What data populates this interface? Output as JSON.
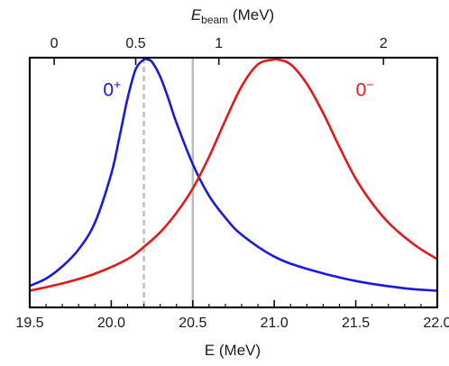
{
  "chart_data": {
    "type": "line",
    "title": "",
    "xlabel": "E (MeV)",
    "x2label_main": "E",
    "x2label_sub": "beam",
    "x2label_unit": " (MeV)",
    "ylabel": "",
    "xlim": [
      19.5,
      22.0
    ],
    "xticks": [
      "19.5",
      "20.0",
      "20.5",
      "21.0",
      "21.5",
      "22.0"
    ],
    "x2ticks": [
      "0",
      "0.5",
      "1",
      "2"
    ],
    "x2tick_positions": [
      19.65,
      20.15,
      20.66,
      21.67
    ],
    "yticks_shown": false,
    "grid": false,
    "series": [
      {
        "name": "0⁺",
        "color": "#1a1adf",
        "x": [
          19.5,
          19.6,
          19.7,
          19.8,
          19.9,
          20.0,
          20.05,
          20.1,
          20.15,
          20.2,
          20.22,
          20.25,
          20.3,
          20.35,
          20.4,
          20.5,
          20.6,
          20.7,
          20.8,
          21.0,
          21.2,
          21.5,
          21.8,
          22.0
        ],
        "y": [
          0.07,
          0.1,
          0.15,
          0.22,
          0.33,
          0.53,
          0.68,
          0.84,
          0.96,
          1.0,
          1.0,
          0.99,
          0.93,
          0.84,
          0.74,
          0.57,
          0.44,
          0.35,
          0.28,
          0.19,
          0.14,
          0.09,
          0.06,
          0.05
        ]
      },
      {
        "name": "0⁻",
        "color": "#e01a1a",
        "x": [
          19.5,
          19.7,
          19.9,
          20.1,
          20.2,
          20.3,
          20.4,
          20.5,
          20.6,
          20.7,
          20.8,
          20.9,
          21.0,
          21.02,
          21.1,
          21.2,
          21.3,
          21.4,
          21.5,
          21.6,
          21.7,
          21.8,
          21.9,
          22.0
        ],
        "y": [
          0.05,
          0.08,
          0.12,
          0.18,
          0.23,
          0.29,
          0.37,
          0.47,
          0.6,
          0.75,
          0.89,
          0.98,
          1.0,
          1.0,
          0.98,
          0.9,
          0.78,
          0.64,
          0.51,
          0.41,
          0.33,
          0.27,
          0.22,
          0.18
        ]
      }
    ],
    "vlines": [
      {
        "x": 20.2,
        "style": "dashed",
        "color": "#bbbbbb"
      },
      {
        "x": 20.5,
        "style": "solid",
        "color": "#bbbbbb"
      }
    ],
    "labels": [
      {
        "text_main": "0",
        "text_sup": "+",
        "color": "#1a1adf",
        "x": 19.95,
        "y": 0.85
      },
      {
        "text_main": "0",
        "text_sup": "−",
        "color": "#e01a1a",
        "x": 21.5,
        "y": 0.85
      }
    ]
  }
}
